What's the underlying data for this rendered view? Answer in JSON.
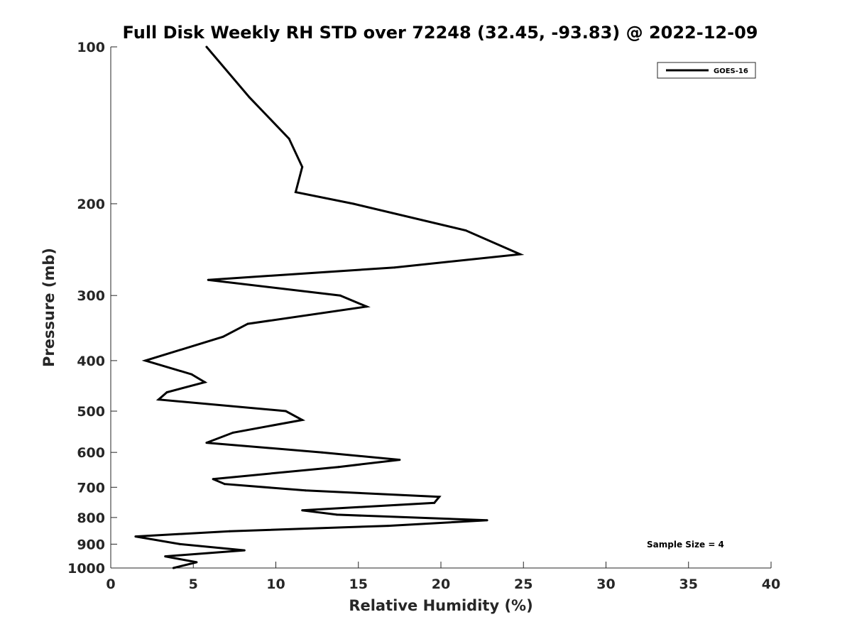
{
  "chart_data": {
    "type": "line",
    "title": "Full Disk Weekly RH STD over 72248 (32.45, -93.83) @ 2022-12-09",
    "xlabel": "Relative Humidity (%)",
    "ylabel": "Pressure (mb)",
    "xlim": [
      0,
      40
    ],
    "ylim": [
      100,
      1000
    ],
    "y_scale": "log",
    "y_direction": "reversed",
    "grid": false,
    "legend_position": "top-right",
    "x_ticks": [
      0,
      5,
      10,
      15,
      20,
      25,
      30,
      35,
      40
    ],
    "y_ticks": [
      100,
      200,
      300,
      400,
      500,
      600,
      700,
      800,
      900,
      1000
    ],
    "annotation": "Sample Size = 4",
    "colors": {
      "series": "#000000",
      "axis": "#262626"
    },
    "series": [
      {
        "name": "GOES-16",
        "points": [
          [
            5.8,
            100
          ],
          [
            8.4,
            125
          ],
          [
            10.8,
            150
          ],
          [
            11.6,
            170
          ],
          [
            11.2,
            190
          ],
          [
            14.7,
            200
          ],
          [
            21.5,
            225
          ],
          [
            24.8,
            250
          ],
          [
            17.2,
            265
          ],
          [
            5.9,
            280
          ],
          [
            13.9,
            300
          ],
          [
            15.5,
            315
          ],
          [
            8.3,
            340
          ],
          [
            6.8,
            360
          ],
          [
            2.1,
            400
          ],
          [
            4.9,
            425
          ],
          [
            5.7,
            440
          ],
          [
            3.4,
            460
          ],
          [
            2.9,
            475
          ],
          [
            10.6,
            500
          ],
          [
            11.6,
            520
          ],
          [
            7.4,
            550
          ],
          [
            5.8,
            575
          ],
          [
            12.8,
            600
          ],
          [
            17.5,
            620
          ],
          [
            13.8,
            640
          ],
          [
            6.2,
            675
          ],
          [
            6.9,
            690
          ],
          [
            11.8,
            710
          ],
          [
            19.9,
            730
          ],
          [
            19.6,
            750
          ],
          [
            11.6,
            775
          ],
          [
            13.7,
            790
          ],
          [
            22.8,
            810
          ],
          [
            16.8,
            830
          ],
          [
            7.2,
            850
          ],
          [
            1.5,
            870
          ],
          [
            4.2,
            900
          ],
          [
            8.1,
            925
          ],
          [
            3.3,
            950
          ],
          [
            5.2,
            975
          ],
          [
            3.8,
            1000
          ]
        ]
      }
    ]
  }
}
